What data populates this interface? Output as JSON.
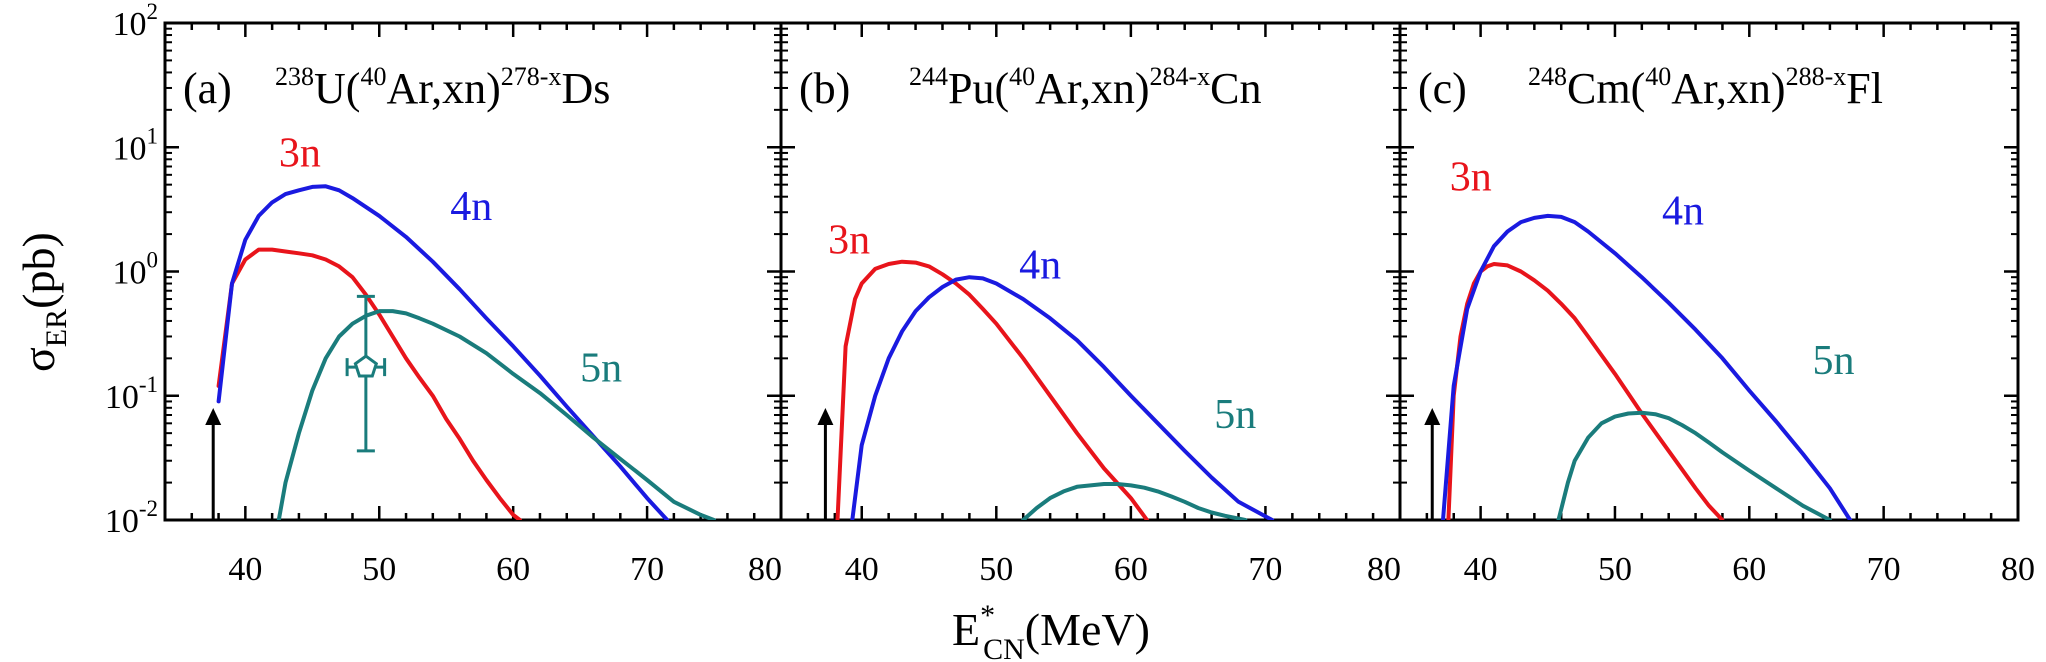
{
  "chart_data": [
    {
      "type": "line",
      "panel_label": "(a)",
      "reaction": {
        "target_mass": "238",
        "target": "U",
        "beam_mass": "40",
        "beam": "Ar",
        "channel": ",xn)",
        "product_mass": "278-x",
        "product": "Ds"
      },
      "xlim": [
        34,
        80
      ],
      "ylim_log10": [
        -2,
        2
      ],
      "arrow_x": 37.6,
      "series": [
        {
          "name": "3n",
          "color": "#e8141b",
          "label_at": [
            42.5,
            7
          ],
          "x": [
            38,
            39,
            40,
            41,
            42,
            43,
            44,
            45,
            46,
            47,
            48,
            49,
            50,
            51,
            52,
            53,
            54,
            55,
            56,
            57,
            58,
            59,
            60,
            60.5
          ],
          "y": [
            0.12,
            0.8,
            1.25,
            1.5,
            1.5,
            1.45,
            1.4,
            1.35,
            1.25,
            1.1,
            0.9,
            0.65,
            0.45,
            0.3,
            0.2,
            0.14,
            0.1,
            0.065,
            0.045,
            0.03,
            0.021,
            0.015,
            0.011,
            0.01
          ]
        },
        {
          "name": "4n",
          "color": "#1a1ae0",
          "label_at": [
            55.3,
            2.6
          ],
          "x": [
            38,
            39,
            40,
            41,
            42,
            43,
            44,
            45,
            46,
            47,
            48,
            50,
            52,
            54,
            56,
            58,
            60,
            62,
            64,
            66,
            68,
            70,
            71.5
          ],
          "y": [
            0.09,
            0.8,
            1.8,
            2.8,
            3.6,
            4.2,
            4.5,
            4.8,
            4.85,
            4.5,
            3.9,
            2.8,
            1.9,
            1.2,
            0.72,
            0.42,
            0.25,
            0.145,
            0.082,
            0.047,
            0.027,
            0.015,
            0.01
          ]
        },
        {
          "name": "5n",
          "color": "#1a7c7c",
          "label_at": [
            65,
            0.13
          ],
          "x": [
            42.5,
            43,
            44,
            45,
            46,
            47,
            48,
            49,
            50,
            51,
            52,
            53,
            54,
            56,
            58,
            60,
            62,
            64,
            66,
            68,
            70,
            72,
            74,
            75
          ],
          "y": [
            0.01,
            0.02,
            0.05,
            0.11,
            0.2,
            0.3,
            0.38,
            0.44,
            0.48,
            0.48,
            0.46,
            0.42,
            0.38,
            0.3,
            0.22,
            0.15,
            0.105,
            0.07,
            0.046,
            0.031,
            0.021,
            0.014,
            0.011,
            0.01
          ]
        }
      ],
      "experiment": {
        "x": 49,
        "y": 0.17,
        "y_low": 0.036,
        "y_high": 0.63,
        "x_low": 47.6,
        "x_high": 50.4,
        "color": "#1a7c7c"
      }
    },
    {
      "type": "line",
      "panel_label": "(b)",
      "reaction": {
        "target_mass": "244",
        "target": "Pu",
        "beam_mass": "40",
        "beam": "Ar",
        "channel": ",xn)",
        "product_mass": "284-x",
        "product": "Cn"
      },
      "xlim": [
        34,
        80
      ],
      "ylim_log10": [
        -2,
        2
      ],
      "arrow_x": 37.3,
      "series": [
        {
          "name": "3n",
          "color": "#e8141b",
          "label_at": [
            37.5,
            1.4
          ],
          "x": [
            38.2,
            38.8,
            39.5,
            40,
            41,
            42,
            43,
            44,
            45,
            46,
            47,
            48,
            49,
            50,
            52,
            54,
            56,
            58,
            60,
            61.2
          ],
          "y": [
            0.01,
            0.25,
            0.6,
            0.8,
            1.05,
            1.15,
            1.2,
            1.18,
            1.1,
            0.95,
            0.8,
            0.65,
            0.5,
            0.38,
            0.2,
            0.1,
            0.05,
            0.026,
            0.015,
            0.01
          ]
        },
        {
          "name": "4n",
          "color": "#1a1ae0",
          "label_at": [
            51.7,
            0.88
          ],
          "x": [
            39.3,
            40,
            41,
            42,
            43,
            44,
            45,
            46,
            47,
            48,
            49,
            50,
            52,
            54,
            56,
            58,
            60,
            62,
            64,
            66,
            68,
            70.5
          ],
          "y": [
            0.01,
            0.04,
            0.1,
            0.2,
            0.33,
            0.48,
            0.62,
            0.75,
            0.86,
            0.9,
            0.88,
            0.8,
            0.6,
            0.42,
            0.28,
            0.17,
            0.1,
            0.06,
            0.036,
            0.022,
            0.014,
            0.01
          ]
        },
        {
          "name": "5n",
          "color": "#1a7c7c",
          "label_at": [
            66.2,
            0.055
          ],
          "x": [
            52,
            53,
            54,
            55,
            56,
            57,
            58,
            59,
            60,
            61,
            62,
            63,
            64,
            65,
            66,
            67,
            68.5
          ],
          "y": [
            0.01,
            0.0125,
            0.015,
            0.017,
            0.0185,
            0.019,
            0.0195,
            0.0195,
            0.019,
            0.0182,
            0.017,
            0.0155,
            0.014,
            0.0125,
            0.0115,
            0.0108,
            0.01
          ]
        }
      ]
    },
    {
      "type": "line",
      "panel_label": "(c)",
      "reaction": {
        "target_mass": "248",
        "target": "Cm",
        "beam_mass": "40",
        "beam": "Ar",
        "channel": ",xn)",
        "product_mass": "288-x",
        "product": "Fl"
      },
      "xlim": [
        34,
        80
      ],
      "ylim_log10": [
        -2,
        2
      ],
      "arrow_x": 36.4,
      "series": [
        {
          "name": "3n",
          "color": "#e8141b",
          "label_at": [
            37.7,
            4.5
          ],
          "x": [
            37.6,
            38,
            38.5,
            39,
            39.5,
            40,
            40.5,
            41,
            42,
            43,
            44,
            45,
            46,
            47,
            48,
            50,
            52,
            54,
            56,
            57,
            58
          ],
          "y": [
            0.01,
            0.1,
            0.3,
            0.55,
            0.8,
            1.0,
            1.1,
            1.15,
            1.12,
            1.0,
            0.85,
            0.7,
            0.55,
            0.42,
            0.3,
            0.15,
            0.072,
            0.036,
            0.018,
            0.013,
            0.01
          ]
        },
        {
          "name": "4n",
          "color": "#1a1ae0",
          "label_at": [
            53.5,
            2.4
          ],
          "x": [
            37.2,
            38,
            39,
            40,
            41,
            42,
            43,
            44,
            45,
            46,
            47,
            48,
            50,
            52,
            54,
            56,
            58,
            60,
            62,
            64,
            66,
            67.5
          ],
          "y": [
            0.01,
            0.12,
            0.5,
            1.0,
            1.6,
            2.1,
            2.5,
            2.7,
            2.8,
            2.75,
            2.5,
            2.1,
            1.4,
            0.9,
            0.56,
            0.34,
            0.2,
            0.11,
            0.062,
            0.034,
            0.018,
            0.01
          ]
        },
        {
          "name": "5n",
          "color": "#1a7c7c",
          "label_at": [
            64.7,
            0.15
          ],
          "x": [
            45.8,
            46.5,
            47,
            48,
            49,
            50,
            51,
            52,
            53,
            54,
            55,
            56,
            57,
            58,
            60,
            62,
            64,
            66
          ],
          "y": [
            0.01,
            0.02,
            0.03,
            0.046,
            0.06,
            0.068,
            0.072,
            0.073,
            0.071,
            0.066,
            0.058,
            0.05,
            0.042,
            0.035,
            0.025,
            0.018,
            0.013,
            0.01
          ]
        }
      ]
    }
  ],
  "axes": {
    "y_label_main": "σ",
    "y_label_sub": "ER",
    "y_label_tail": "(pb)",
    "x_label_main": "E",
    "x_label_sup": "*",
    "x_label_sub": "CN",
    "x_label_tail": "(MeV)",
    "x_ticks": [
      "40",
      "50",
      "60",
      "70",
      "80"
    ],
    "x_left_tick": "80",
    "y_ticks": [
      {
        "base": "10",
        "exp": "2"
      },
      {
        "base": "10",
        "exp": "1"
      },
      {
        "base": "10",
        "exp": "0"
      },
      {
        "base": "10",
        "exp": "-1"
      },
      {
        "base": "10",
        "exp": "-2"
      }
    ]
  }
}
